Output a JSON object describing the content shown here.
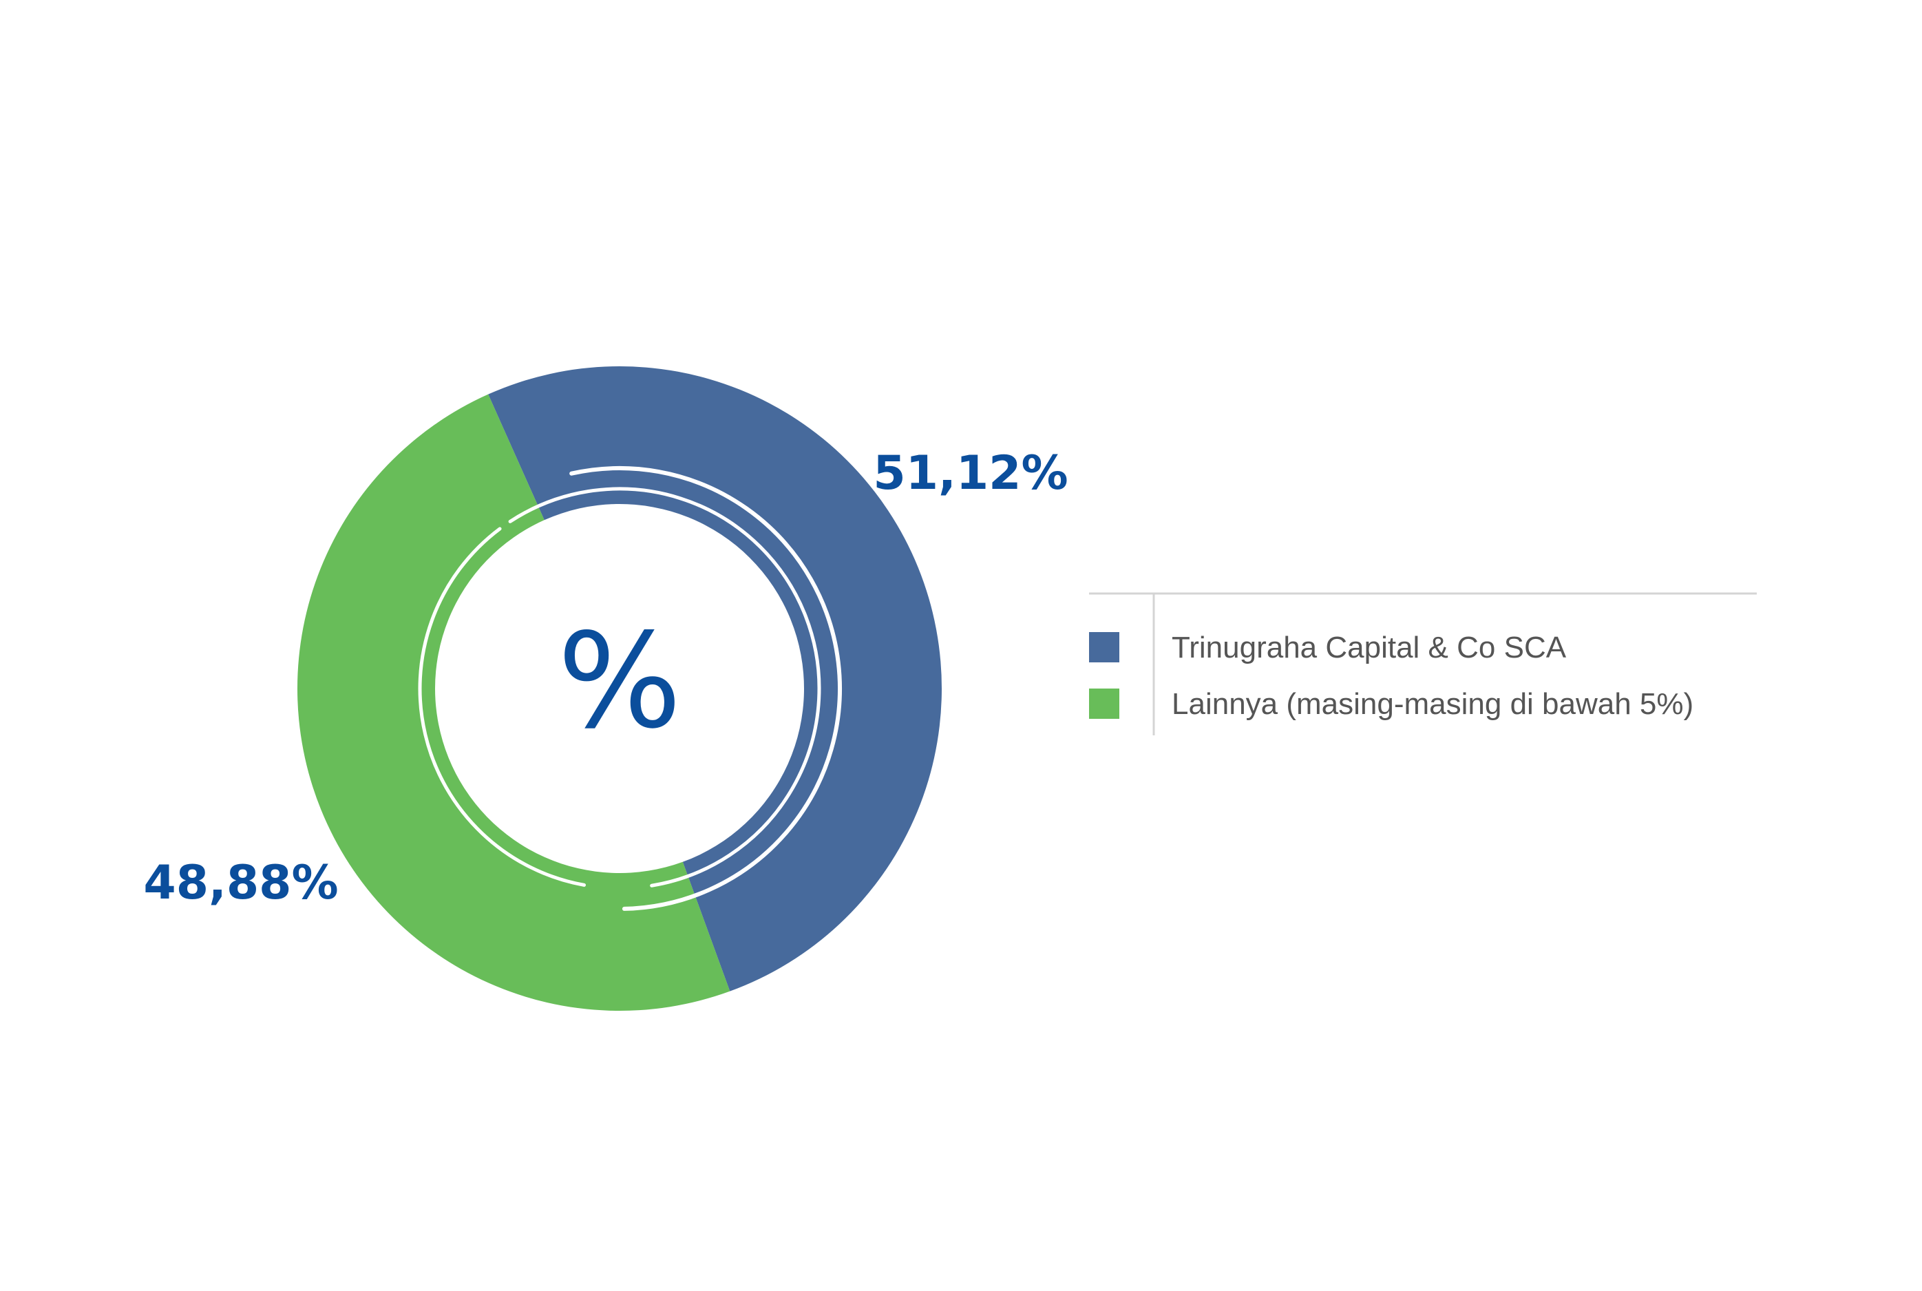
{
  "chart_data": {
    "type": "pie",
    "variant": "donut",
    "center_label": "%",
    "slices": [
      {
        "label": "Trinugraha Capital & Co SCA",
        "value": 51.12,
        "display": "51,12%",
        "color": "#476A9C"
      },
      {
        "label": "Lainnya (masing-masing di bawah 5%)",
        "value": 48.88,
        "display": "48,88%",
        "color": "#68BD59"
      }
    ],
    "label_color": "#0B4E9C",
    "legend": {
      "placement": "right",
      "items": [
        {
          "label": "Trinugraha Capital & Co SCA",
          "color": "#476A9C"
        },
        {
          "label": "Lainnya (masing-masing di bawah 5%)",
          "color": "#68BD59"
        }
      ]
    }
  }
}
